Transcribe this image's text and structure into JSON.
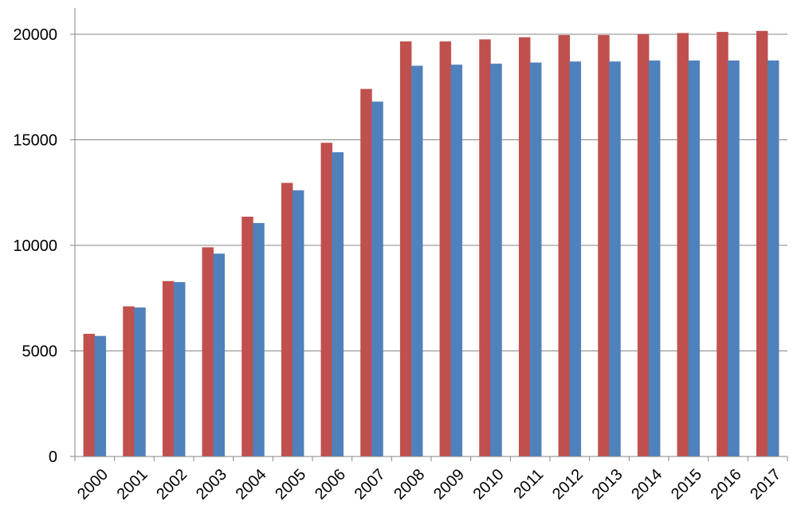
{
  "colors": {
    "series_a": "#C0504D",
    "series_b": "#4F81BD",
    "gridline": "#868686",
    "axis": "#868686"
  },
  "chart_data": {
    "type": "bar",
    "categories": [
      "2000",
      "2001",
      "2002",
      "2003",
      "2004",
      "2005",
      "2006",
      "2007",
      "2008",
      "2009",
      "2010",
      "2011",
      "2012",
      "2013",
      "2014",
      "2015",
      "2016",
      "2017"
    ],
    "series": [
      {
        "values": [
          5800,
          7100,
          8300,
          9900,
          11350,
          12950,
          14850,
          17400,
          19650,
          19650,
          19750,
          19850,
          19950,
          19950,
          20000,
          20050,
          20100,
          20150
        ]
      },
      {
        "values": [
          5700,
          7050,
          8250,
          9600,
          11050,
          12600,
          14400,
          16800,
          18500,
          18550,
          18600,
          18650,
          18700,
          18700,
          18750,
          18750,
          18750,
          18750
        ]
      }
    ],
    "ylim": [
      0,
      21000
    ],
    "yticks": [
      "0",
      "5000",
      "10000",
      "15000",
      "20000"
    ],
    "grid": true,
    "legend": "none"
  }
}
